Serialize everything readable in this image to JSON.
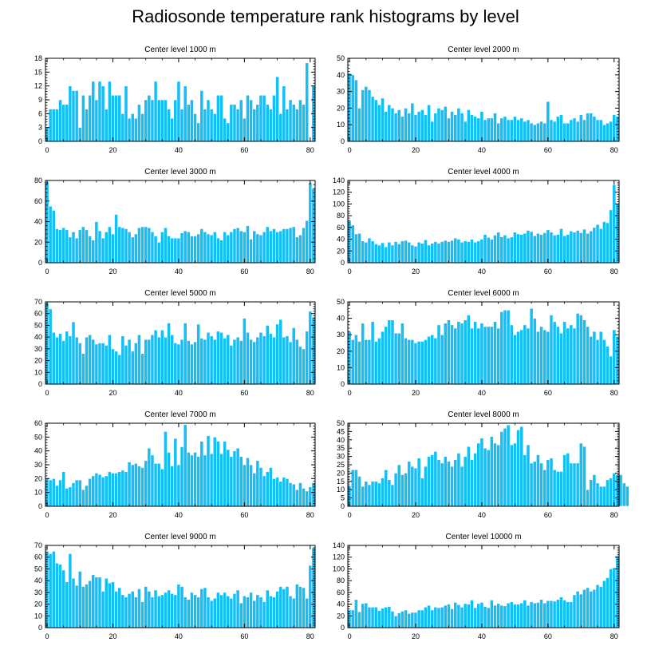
{
  "figure": {
    "title": "Radiosonde temperature rank histograms by level"
  },
  "colors": {
    "bar": "#14BEF6",
    "axis": "#000000",
    "bar_edge": "#ffffff"
  },
  "chart_data": [
    {
      "type": "bar",
      "title": "Center level 1000 m",
      "xlabel": "",
      "ylabel": "",
      "x_ticks": [
        0,
        20,
        40,
        60,
        80
      ],
      "y_ticks": [
        0,
        3,
        6,
        9,
        12,
        15,
        18
      ],
      "ylim": [
        0,
        18
      ],
      "xlim": [
        -0.5,
        81.5
      ],
      "values": [
        3,
        7,
        7,
        7,
        9,
        8,
        8,
        12,
        11,
        11,
        3,
        10,
        7,
        10,
        13,
        9,
        13,
        12,
        7,
        13,
        10,
        10,
        10,
        6,
        12,
        5,
        6,
        5,
        8,
        6,
        9,
        10,
        9,
        13,
        9,
        9,
        9,
        7,
        5,
        9,
        13,
        7,
        12,
        8,
        9,
        6,
        4,
        11,
        7,
        9,
        7,
        6,
        10,
        10,
        5,
        4,
        8,
        8,
        7,
        9,
        5,
        10,
        9,
        7,
        8,
        10,
        10,
        8,
        7,
        10,
        14,
        6,
        12,
        7,
        9,
        8,
        7,
        9,
        8,
        17,
        0,
        12
      ]
    },
    {
      "type": "bar",
      "title": "Center level 2000 m",
      "xlabel": "",
      "ylabel": "",
      "x_ticks": [
        0,
        20,
        40,
        60,
        80
      ],
      "y_ticks": [
        0,
        10,
        20,
        30,
        40,
        50
      ],
      "ylim": [
        0,
        50
      ],
      "xlim": [
        -0.5,
        81.5
      ],
      "values": [
        41,
        40,
        37,
        20,
        31,
        33,
        31,
        27,
        25,
        22,
        26,
        18,
        22,
        20,
        17,
        19,
        15,
        20,
        17,
        23,
        16,
        18,
        19,
        16,
        22,
        12,
        17,
        20,
        19,
        21,
        14,
        18,
        16,
        20,
        17,
        12,
        19,
        16,
        15,
        14,
        18,
        13,
        14,
        14,
        17,
        11,
        14,
        15,
        13,
        13,
        15,
        13,
        14,
        12,
        13,
        11,
        10,
        11,
        12,
        11,
        24,
        13,
        12,
        15,
        16,
        11,
        11,
        13,
        14,
        12,
        16,
        13,
        17,
        17,
        15,
        13,
        13,
        10,
        11,
        12,
        16,
        15
      ]
    },
    {
      "type": "bar",
      "title": "Center level 3000 m",
      "xlabel": "",
      "ylabel": "",
      "x_ticks": [
        0,
        20,
        40,
        60,
        80
      ],
      "y_ticks": [
        0,
        20,
        40,
        60,
        80
      ],
      "ylim": [
        0,
        80
      ],
      "xlim": [
        -0.5,
        81.5
      ],
      "values": [
        79,
        55,
        51,
        33,
        32,
        34,
        32,
        25,
        30,
        24,
        32,
        35,
        32,
        26,
        22,
        40,
        31,
        24,
        30,
        35,
        28,
        47,
        35,
        34,
        33,
        30,
        25,
        28,
        34,
        35,
        35,
        34,
        30,
        26,
        20,
        30,
        34,
        26,
        24,
        24,
        24,
        29,
        31,
        30,
        26,
        26,
        28,
        33,
        30,
        28,
        27,
        30,
        24,
        22,
        30,
        27,
        30,
        33,
        34,
        31,
        30,
        36,
        23,
        31,
        28,
        27,
        30,
        35,
        31,
        33,
        30,
        31,
        33,
        33,
        34,
        35,
        25,
        27,
        34,
        41,
        78,
        72
      ]
    },
    {
      "type": "bar",
      "title": "Center level 4000 m",
      "xlabel": "",
      "ylabel": "",
      "x_ticks": [
        0,
        20,
        40,
        60,
        80
      ],
      "y_ticks": [
        0,
        20,
        40,
        60,
        80,
        100,
        120,
        140
      ],
      "ylim": [
        0,
        140
      ],
      "xlim": [
        -0.5,
        81.5
      ],
      "values": [
        72,
        64,
        49,
        50,
        37,
        35,
        42,
        37,
        32,
        30,
        34,
        27,
        35,
        30,
        36,
        32,
        37,
        38,
        35,
        30,
        28,
        35,
        33,
        39,
        30,
        33,
        36,
        33,
        36,
        38,
        36,
        38,
        42,
        40,
        35,
        37,
        36,
        40,
        35,
        37,
        40,
        48,
        43,
        40,
        47,
        52,
        44,
        47,
        42,
        44,
        52,
        49,
        48,
        50,
        55,
        53,
        46,
        50,
        48,
        51,
        56,
        52,
        47,
        48,
        58,
        46,
        48,
        54,
        52,
        55,
        51,
        57,
        50,
        54,
        60,
        65,
        58,
        70,
        68,
        90,
        133,
        100
      ]
    },
    {
      "type": "bar",
      "title": "Center level 5000 m",
      "xlabel": "",
      "ylabel": "",
      "x_ticks": [
        0,
        20,
        40,
        60,
        80
      ],
      "y_ticks": [
        0,
        10,
        20,
        30,
        40,
        50,
        60,
        70
      ],
      "ylim": [
        0,
        70
      ],
      "xlim": [
        -0.5,
        81.5
      ],
      "values": [
        69,
        64,
        44,
        40,
        43,
        37,
        45,
        41,
        53,
        40,
        35,
        26,
        40,
        42,
        38,
        34,
        35,
        35,
        33,
        42,
        30,
        28,
        25,
        41,
        33,
        38,
        28,
        35,
        42,
        26,
        38,
        38,
        42,
        46,
        40,
        46,
        40,
        52,
        42,
        35,
        34,
        38,
        52,
        37,
        34,
        36,
        51,
        39,
        38,
        44,
        41,
        38,
        45,
        44,
        39,
        42,
        33,
        38,
        40,
        37,
        56,
        44,
        38,
        36,
        40,
        44,
        41,
        50,
        43,
        40,
        51,
        55,
        40,
        41,
        36,
        48,
        38,
        32,
        30,
        45,
        62,
        57
      ]
    },
    {
      "type": "bar",
      "title": "Center level 6000 m",
      "xlabel": "",
      "ylabel": "",
      "x_ticks": [
        0,
        20,
        40,
        60,
        80
      ],
      "y_ticks": [
        0,
        10,
        20,
        30,
        40,
        50
      ],
      "ylim": [
        0,
        50
      ],
      "xlim": [
        -0.5,
        81.5
      ],
      "values": [
        32,
        27,
        30,
        26,
        37,
        27,
        27,
        38,
        26,
        28,
        32,
        35,
        39,
        39,
        31,
        31,
        37,
        28,
        27,
        27,
        25,
        26,
        26,
        27,
        29,
        30,
        28,
        36,
        30,
        37,
        39,
        36,
        34,
        38,
        37,
        39,
        42,
        34,
        38,
        34,
        37,
        35,
        35,
        35,
        38,
        34,
        44,
        45,
        45,
        36,
        30,
        32,
        33,
        36,
        34,
        46,
        40,
        32,
        35,
        33,
        32,
        42,
        38,
        35,
        31,
        38,
        34,
        36,
        34,
        43,
        42,
        39,
        35,
        29,
        32,
        27,
        32,
        27,
        23,
        17,
        33,
        29
      ]
    },
    {
      "type": "bar",
      "title": "Center level 7000 m",
      "xlabel": "",
      "ylabel": "",
      "x_ticks": [
        0,
        20,
        40,
        60,
        80
      ],
      "y_ticks": [
        0,
        10,
        20,
        30,
        40,
        50,
        60
      ],
      "ylim": [
        0,
        60
      ],
      "xlim": [
        -0.5,
        81.5
      ],
      "values": [
        20,
        19,
        20,
        15,
        19,
        25,
        13,
        14,
        17,
        19,
        19,
        12,
        15,
        20,
        22,
        24,
        23,
        21,
        22,
        25,
        24,
        24,
        25,
        26,
        25,
        32,
        30,
        31,
        29,
        28,
        33,
        42,
        37,
        31,
        31,
        27,
        54,
        39,
        29,
        49,
        30,
        43,
        59,
        39,
        37,
        39,
        36,
        47,
        37,
        51,
        38,
        50,
        47,
        38,
        47,
        41,
        36,
        40,
        42,
        36,
        30,
        35,
        30,
        24,
        33,
        28,
        22,
        25,
        28,
        20,
        21,
        18,
        21,
        20,
        17,
        16,
        12,
        17,
        13,
        11,
        14,
        17
      ]
    },
    {
      "type": "bar",
      "title": "Center level 8000 m",
      "xlabel": "",
      "ylabel": "",
      "x_ticks": [
        0,
        20,
        40,
        60,
        80
      ],
      "y_ticks": [
        0,
        5,
        10,
        15,
        20,
        25,
        30,
        35,
        40,
        45,
        50
      ],
      "ylim": [
        0,
        50
      ],
      "xlim": [
        -0.5,
        81.5
      ],
      "values": [
        12,
        22,
        22,
        18,
        12,
        15,
        13,
        15,
        15,
        14,
        17,
        22,
        16,
        13,
        20,
        25,
        19,
        20,
        27,
        24,
        23,
        29,
        17,
        24,
        30,
        31,
        33,
        28,
        26,
        30,
        27,
        24,
        28,
        32,
        24,
        30,
        36,
        28,
        32,
        38,
        41,
        35,
        34,
        42,
        38,
        37,
        45,
        47,
        49,
        37,
        38,
        46,
        48,
        31,
        37,
        26,
        27,
        31,
        26,
        22,
        28,
        29,
        22,
        21,
        21,
        31,
        32,
        26,
        26,
        26,
        38,
        36,
        10,
        16,
        19,
        14,
        12,
        12,
        16,
        17,
        20,
        19,
        19,
        14,
        12
      ]
    },
    {
      "type": "bar",
      "title": "Center level 9000 m",
      "xlabel": "",
      "ylabel": "",
      "x_ticks": [
        0,
        20,
        40,
        60,
        80
      ],
      "y_ticks": [
        0,
        10,
        20,
        30,
        40,
        50,
        60,
        70
      ],
      "ylim": [
        0,
        70
      ],
      "xlim": [
        -0.5,
        81.5
      ],
      "values": [
        65,
        63,
        65,
        55,
        54,
        49,
        39,
        63,
        42,
        36,
        48,
        35,
        37,
        40,
        45,
        43,
        43,
        31,
        42,
        38,
        39,
        31,
        34,
        28,
        26,
        29,
        31,
        26,
        33,
        22,
        35,
        31,
        26,
        32,
        27,
        28,
        30,
        32,
        29,
        28,
        37,
        35,
        26,
        24,
        30,
        28,
        26,
        33,
        34,
        26,
        23,
        25,
        30,
        28,
        30,
        27,
        25,
        29,
        32,
        21,
        27,
        26,
        30,
        23,
        28,
        26,
        22,
        32,
        27,
        26,
        31,
        35,
        33,
        35,
        27,
        25,
        37,
        35,
        34,
        25,
        53,
        68
      ]
    },
    {
      "type": "bar",
      "title": "Center level 10000 m",
      "xlabel": "",
      "ylabel": "",
      "x_ticks": [
        0,
        20,
        40,
        60,
        80
      ],
      "y_ticks": [
        0,
        20,
        40,
        60,
        80,
        100,
        120,
        140
      ],
      "ylim": [
        0,
        140
      ],
      "xlim": [
        -0.5,
        81.5
      ],
      "values": [
        30,
        30,
        48,
        27,
        41,
        42,
        35,
        35,
        35,
        29,
        33,
        35,
        36,
        28,
        20,
        25,
        28,
        30,
        24,
        26,
        26,
        30,
        30,
        35,
        38,
        30,
        35,
        34,
        35,
        38,
        40,
        32,
        43,
        39,
        35,
        41,
        40,
        47,
        34,
        41,
        43,
        36,
        34,
        47,
        38,
        41,
        38,
        37,
        42,
        44,
        40,
        40,
        42,
        47,
        38,
        44,
        42,
        43,
        48,
        42,
        46,
        46,
        45,
        48,
        52,
        47,
        44,
        44,
        56,
        62,
        57,
        65,
        68,
        62,
        65,
        73,
        70,
        80,
        85,
        100,
        102,
        122
      ]
    }
  ]
}
